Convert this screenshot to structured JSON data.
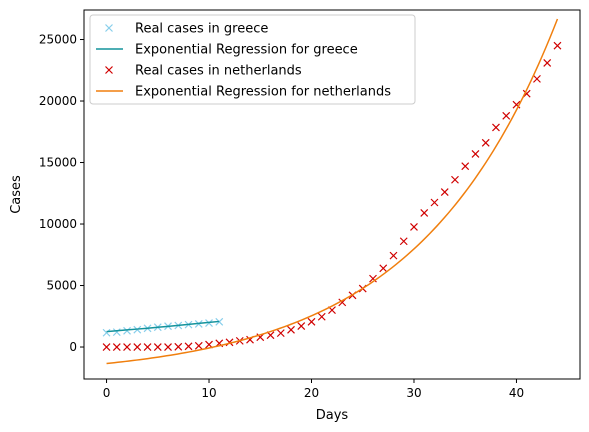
{
  "chart_data": {
    "type": "line",
    "title": "",
    "xlabel": "Days",
    "ylabel": "Cases",
    "xlim": [
      -2.2,
      46.2
    ],
    "ylim": [
      -2600,
      27400
    ],
    "x_ticks": [
      0,
      10,
      20,
      30,
      40
    ],
    "y_ticks": [
      0,
      5000,
      10000,
      15000,
      20000,
      25000
    ],
    "grid": false,
    "legend_position": "top-left",
    "series": [
      {
        "name": "Real cases in greece",
        "kind": "markers",
        "marker": "x",
        "color": "#87ceeb",
        "x": [
          0,
          1,
          2,
          3,
          4,
          5,
          6,
          7,
          8,
          9,
          10,
          11
        ],
        "y": [
          1160,
          1210,
          1320,
          1410,
          1520,
          1610,
          1690,
          1750,
          1820,
          1880,
          1950,
          2050
        ]
      },
      {
        "name": "Exponential Regression for greece",
        "kind": "line",
        "color": "#14939c",
        "x": [
          0,
          1,
          2,
          3,
          4,
          5,
          6,
          7,
          8,
          9,
          10,
          11
        ],
        "y": [
          1250,
          1320,
          1390,
          1460,
          1530,
          1610,
          1680,
          1760,
          1840,
          1920,
          2000,
          2080
        ]
      },
      {
        "name": "Real cases in netherlands",
        "kind": "markers",
        "marker": "x",
        "color": "#d00000",
        "x": [
          0,
          1,
          2,
          3,
          4,
          5,
          6,
          7,
          8,
          9,
          10,
          11,
          12,
          13,
          14,
          15,
          16,
          17,
          18,
          19,
          20,
          21,
          22,
          23,
          24,
          25,
          26,
          27,
          28,
          29,
          30,
          31,
          32,
          33,
          34,
          35,
          36,
          37,
          38,
          39,
          40,
          41,
          42,
          43,
          44
        ],
        "y": [
          0,
          0,
          0,
          0,
          0,
          0,
          0,
          20,
          60,
          100,
          200,
          300,
          380,
          500,
          600,
          800,
          960,
          1130,
          1400,
          1700,
          2050,
          2460,
          3000,
          3630,
          4200,
          4750,
          5560,
          6400,
          7430,
          8600,
          9760,
          10900,
          11750,
          12600,
          13600,
          14700,
          15700,
          16600,
          17850,
          18800,
          19700,
          20600,
          21800,
          23100,
          24500
        ]
      },
      {
        "name": "Exponential Regression for netherlands",
        "kind": "line",
        "color": "#f07f0e",
        "func": {
          "a": 1170,
          "b": 0.0731,
          "c": -2510
        },
        "x_range": [
          0,
          44
        ]
      }
    ]
  }
}
